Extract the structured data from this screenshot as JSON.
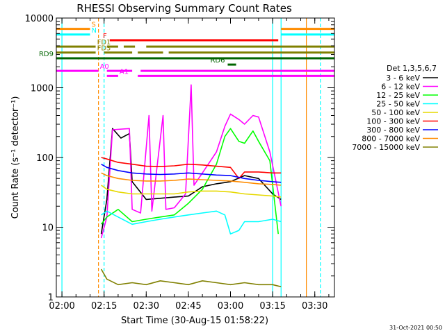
{
  "chart_data": {
    "type": "line",
    "title": "RHESSI Observing Summary Count Rates",
    "xlabel": "Start Time (30-Aug-15 01:58:22)",
    "ylabel": "Count Rate (s⁻¹ detector⁻¹)",
    "yscale": "log",
    "ylim": [
      1,
      10000
    ],
    "xlim": [
      "01:58",
      "03:37"
    ],
    "x_ticks": [
      "02:00",
      "02:15",
      "02:30",
      "02:45",
      "03:00",
      "03:15",
      "03:30"
    ],
    "y_ticks": [
      "1",
      "10",
      "100",
      "1000",
      "10000"
    ],
    "legend_title": "Det 1,3,5,6,7",
    "legend_position": "right",
    "timestamp": "31-Oct-2021 00:50",
    "series": [
      {
        "name": "3 - 6 keV",
        "color": "#000000",
        "points": [
          [
            "02:14",
            8
          ],
          [
            "02:16",
            25
          ],
          [
            "02:18",
            260
          ],
          [
            "02:21",
            190
          ],
          [
            "02:24",
            220
          ],
          [
            "02:25",
            45
          ],
          [
            "02:30",
            25
          ],
          [
            "02:35",
            26
          ],
          [
            "02:40",
            27
          ],
          [
            "02:45",
            28
          ],
          [
            "02:50",
            38
          ],
          [
            "02:55",
            42
          ],
          [
            "03:00",
            45
          ],
          [
            "03:05",
            55
          ],
          [
            "03:10",
            50
          ],
          [
            "03:15",
            30
          ],
          [
            "03:18",
            25
          ]
        ]
      },
      {
        "name": "6 - 12 keV",
        "color": "#ff00ff",
        "points": [
          [
            "02:14",
            7
          ],
          [
            "02:16",
            14
          ],
          [
            "02:18",
            250
          ],
          [
            "02:24",
            260
          ],
          [
            "02:25",
            18
          ],
          [
            "02:28",
            16
          ],
          [
            "02:31",
            400
          ],
          [
            "02:32",
            17
          ],
          [
            "02:36",
            400
          ],
          [
            "02:37",
            18
          ],
          [
            "02:40",
            19
          ],
          [
            "02:44",
            30
          ],
          [
            "02:46",
            1100
          ],
          [
            "02:47",
            40
          ],
          [
            "02:50",
            60
          ],
          [
            "02:55",
            120
          ],
          [
            "02:58",
            280
          ],
          [
            "03:00",
            420
          ],
          [
            "03:03",
            350
          ],
          [
            "03:05",
            300
          ],
          [
            "03:08",
            400
          ],
          [
            "03:10",
            380
          ],
          [
            "03:14",
            120
          ],
          [
            "03:18",
            20
          ]
        ]
      },
      {
        "name": "12 - 25 keV",
        "color": "#00ff00",
        "points": [
          [
            "02:14",
            11
          ],
          [
            "02:16",
            14
          ],
          [
            "02:20",
            18
          ],
          [
            "02:25",
            12
          ],
          [
            "02:30",
            13
          ],
          [
            "02:35",
            14
          ],
          [
            "02:40",
            15
          ],
          [
            "02:45",
            22
          ],
          [
            "02:50",
            35
          ],
          [
            "02:55",
            80
          ],
          [
            "02:58",
            200
          ],
          [
            "03:00",
            260
          ],
          [
            "03:03",
            170
          ],
          [
            "03:05",
            160
          ],
          [
            "03:08",
            240
          ],
          [
            "03:10",
            170
          ],
          [
            "03:14",
            90
          ],
          [
            "03:17",
            8
          ]
        ]
      },
      {
        "name": "25 - 50 keV",
        "color": "#00ffff",
        "points": [
          [
            "02:14",
            15
          ],
          [
            "02:16",
            17
          ],
          [
            "02:20",
            14
          ],
          [
            "02:25",
            11
          ],
          [
            "02:30",
            12
          ],
          [
            "02:35",
            13
          ],
          [
            "02:40",
            14
          ],
          [
            "02:45",
            15
          ],
          [
            "02:50",
            16
          ],
          [
            "02:55",
            17
          ],
          [
            "02:58",
            15
          ],
          [
            "03:00",
            8
          ],
          [
            "03:03",
            9
          ],
          [
            "03:05",
            12
          ],
          [
            "03:10",
            12
          ],
          [
            "03:15",
            13
          ],
          [
            "03:18",
            12
          ]
        ]
      },
      {
        "name": "50 - 100 keV",
        "color": "#e6d800",
        "points": [
          [
            "02:14",
            40
          ],
          [
            "02:16",
            35
          ],
          [
            "02:20",
            32
          ],
          [
            "02:25",
            30
          ],
          [
            "02:30",
            30
          ],
          [
            "02:35",
            30
          ],
          [
            "02:40",
            30
          ],
          [
            "02:45",
            32
          ],
          [
            "02:50",
            33
          ],
          [
            "02:55",
            33
          ],
          [
            "03:00",
            32
          ],
          [
            "03:05",
            30
          ],
          [
            "03:10",
            29
          ],
          [
            "03:15",
            28
          ],
          [
            "03:18",
            27
          ]
        ]
      },
      {
        "name": "100 - 300 keV",
        "color": "#ff0000",
        "points": [
          [
            "02:14",
            100
          ],
          [
            "02:16",
            95
          ],
          [
            "02:20",
            85
          ],
          [
            "02:25",
            80
          ],
          [
            "02:30",
            75
          ],
          [
            "02:35",
            74
          ],
          [
            "02:40",
            76
          ],
          [
            "02:45",
            80
          ],
          [
            "02:50",
            78
          ],
          [
            "02:55",
            75
          ],
          [
            "03:00",
            72
          ],
          [
            "03:03",
            50
          ],
          [
            "03:05",
            62
          ],
          [
            "03:10",
            62
          ],
          [
            "03:15",
            60
          ],
          [
            "03:18",
            60
          ]
        ]
      },
      {
        "name": "300 - 800 keV",
        "color": "#0000ff",
        "points": [
          [
            "02:14",
            80
          ],
          [
            "02:16",
            72
          ],
          [
            "02:20",
            65
          ],
          [
            "02:25",
            60
          ],
          [
            "02:30",
            58
          ],
          [
            "02:35",
            57
          ],
          [
            "02:40",
            58
          ],
          [
            "02:45",
            60
          ],
          [
            "02:50",
            58
          ],
          [
            "02:55",
            56
          ],
          [
            "03:00",
            55
          ],
          [
            "03:05",
            50
          ],
          [
            "03:10",
            47
          ],
          [
            "03:15",
            45
          ],
          [
            "03:18",
            44
          ]
        ]
      },
      {
        "name": "800 - 7000 keV",
        "color": "#ff8c00",
        "points": [
          [
            "02:14",
            60
          ],
          [
            "02:16",
            55
          ],
          [
            "02:20",
            50
          ],
          [
            "02:25",
            47
          ],
          [
            "02:30",
            46
          ],
          [
            "02:35",
            46
          ],
          [
            "02:40",
            47
          ],
          [
            "02:45",
            49
          ],
          [
            "02:50",
            48
          ],
          [
            "02:55",
            47
          ],
          [
            "03:00",
            46
          ],
          [
            "03:05",
            44
          ],
          [
            "03:10",
            42
          ],
          [
            "03:15",
            41
          ],
          [
            "03:18",
            40
          ]
        ]
      },
      {
        "name": "7000 - 15000 keV",
        "color": "#808000",
        "points": [
          [
            "02:14",
            2.5
          ],
          [
            "02:16",
            1.8
          ],
          [
            "02:20",
            1.5
          ],
          [
            "02:25",
            1.6
          ],
          [
            "02:30",
            1.5
          ],
          [
            "02:35",
            1.7
          ],
          [
            "02:40",
            1.6
          ],
          [
            "02:45",
            1.5
          ],
          [
            "02:50",
            1.7
          ],
          [
            "02:55",
            1.6
          ],
          [
            "03:00",
            1.5
          ],
          [
            "03:05",
            1.6
          ],
          [
            "03:10",
            1.5
          ],
          [
            "03:15",
            1.5
          ],
          [
            "03:18",
            1.4
          ]
        ]
      }
    ],
    "flags": [
      {
        "label": "S",
        "color": "#ff8c00",
        "y": 7000,
        "segments": [
          [
            "01:58",
            "02:10"
          ],
          [
            "03:18",
            "03:37"
          ]
        ]
      },
      {
        "label": "N",
        "color": "#00ffff",
        "y": 5800,
        "segments": [
          [
            "01:58",
            "02:10"
          ],
          [
            "03:18",
            "03:37"
          ]
        ]
      },
      {
        "label": "F",
        "color": "#ff0000",
        "y": 4800,
        "segments": [
          [
            "02:17",
            "03:17"
          ]
        ]
      },
      {
        "label": "FD1",
        "color": "#808000",
        "y": 3900,
        "segments": [
          [
            "01:58",
            "02:12"
          ],
          [
            "02:16",
            "02:20"
          ],
          [
            "02:22",
            "02:26"
          ],
          [
            "02:30",
            "03:37"
          ]
        ]
      },
      {
        "label": "FD3",
        "color": "#808000",
        "y": 3200,
        "segments": [
          [
            "01:58",
            "02:12"
          ],
          [
            "02:15",
            "02:25"
          ],
          [
            "02:27",
            "02:36"
          ],
          [
            "02:38",
            "03:37"
          ]
        ]
      },
      {
        "label": "RD9",
        "color": "#006400",
        "y": 2650,
        "segments": [
          [
            "01:58",
            "03:37"
          ]
        ]
      },
      {
        "label": "RD6",
        "color": "#006400",
        "y": 2150,
        "segments": [
          [
            "02:59",
            "03:02"
          ]
        ]
      },
      {
        "label": "A0",
        "color": "#ff00ff",
        "y": 1750,
        "segments": [
          [
            "01:58",
            "02:13"
          ],
          [
            "02:16",
            "02:25"
          ],
          [
            "02:28",
            "03:37"
          ]
        ]
      },
      {
        "label": "A1",
        "color": "#ff00ff",
        "y": 1480,
        "segments": [
          [
            "02:16",
            "02:20"
          ],
          [
            "02:27",
            "03:37"
          ]
        ]
      }
    ],
    "vlines": [
      {
        "x": "02:13",
        "color": "#ff8c00",
        "dash": true
      },
      {
        "x": "02:15",
        "color": "#00ffff",
        "dash": true
      },
      {
        "x": "02:00",
        "color": "#00ffff",
        "dash": false
      },
      {
        "x": "03:15",
        "color": "#00ffff",
        "dash": false
      },
      {
        "x": "03:18",
        "color": "#00ffff",
        "dash": false
      },
      {
        "x": "03:27",
        "color": "#ff8c00",
        "dash": false
      },
      {
        "x": "03:32",
        "color": "#00ffff",
        "dash": true
      }
    ]
  }
}
